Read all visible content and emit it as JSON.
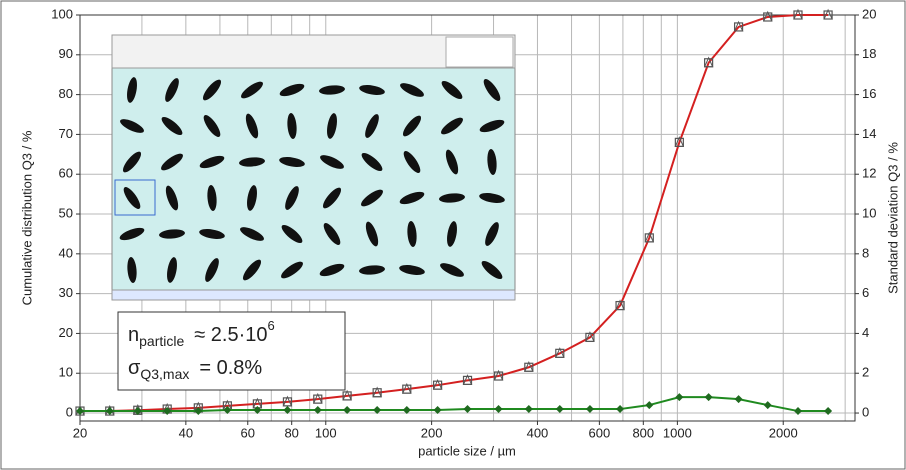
{
  "chart_data": {
    "type": "line",
    "x_label": "particle size / µm",
    "y_label": "Cumulative distribution Q3 / %",
    "y2_label": "Standard deviation Q3 / %",
    "xscale": "log",
    "xlim": [
      20,
      3200
    ],
    "xticks": [
      20,
      40,
      60,
      80,
      100,
      200,
      400,
      600,
      800,
      1000,
      2000
    ],
    "xminor": [
      30,
      50,
      70,
      90,
      300,
      500,
      700,
      900,
      3000
    ],
    "ylim": [
      -2,
      100
    ],
    "yticks": [
      0,
      10,
      20,
      30,
      40,
      50,
      60,
      70,
      80,
      90,
      100
    ],
    "y2lim": [
      -0.4,
      20
    ],
    "y2ticks": [
      0,
      2,
      4,
      6,
      8,
      10,
      12,
      14,
      16,
      18,
      20
    ],
    "grid": true,
    "x": [
      20,
      24.3,
      29.2,
      35.4,
      43.4,
      52.5,
      63.9,
      77.8,
      94.9,
      115,
      140,
      170,
      208,
      253,
      310,
      378,
      463,
      564,
      687,
      832,
      1013,
      1227,
      1493,
      1807,
      2203,
      2683
    ],
    "series": [
      {
        "color": "#d42020",
        "marker_color": "#555555",
        "values": [
          0.5,
          0.5,
          0.7,
          1,
          1.3,
          1.8,
          2.3,
          2.8,
          3.5,
          4.3,
          5.1,
          6,
          7,
          8.2,
          9.3,
          11.5,
          15,
          19,
          27,
          44,
          68,
          88,
          97,
          99.5,
          100,
          100
        ]
      },
      {
        "color": "#1f8a1f",
        "axis": "y2",
        "marker_color": "#1f6a1f",
        "values": [
          0.1,
          0.1,
          0.1,
          0.1,
          0.1,
          0.15,
          0.15,
          0.15,
          0.15,
          0.15,
          0.15,
          0.15,
          0.15,
          0.2,
          0.2,
          0.2,
          0.2,
          0.2,
          0.2,
          0.4,
          0.8,
          0.8,
          0.7,
          0.4,
          0.1,
          0.1
        ]
      }
    ],
    "annotations": [
      {
        "symbol": "n",
        "subscript": "particle",
        "text": "≈ 2.5·10",
        "superscript": "6"
      },
      {
        "symbol": "σ",
        "subscript": "Q3,max",
        "text": "= 0.8%"
      }
    ]
  }
}
